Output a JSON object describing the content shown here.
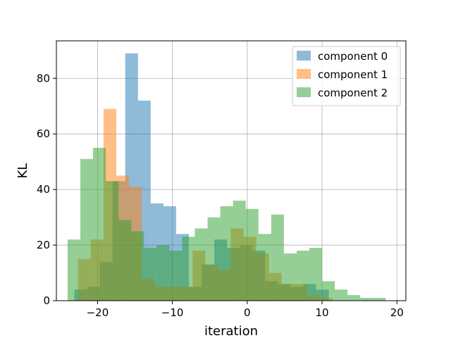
{
  "chart_data": {
    "type": "histogram",
    "xlabel": "iteration",
    "ylabel": "KL",
    "xlim": [
      -25.5,
      21.2
    ],
    "ylim": [
      0,
      93.5
    ],
    "xticks": [
      -20,
      -10,
      0,
      10,
      20
    ],
    "xtick_labels": [
      "−20",
      "−10",
      "0",
      "10",
      "20"
    ],
    "yticks": [
      0,
      20,
      40,
      60,
      80
    ],
    "ytick_labels": [
      "0",
      "20",
      "40",
      "60",
      "80"
    ],
    "grid": true,
    "legend_position": "top-right",
    "alpha": 0.5,
    "series": [
      {
        "name": "component 0",
        "color": "#1f77b4",
        "edges": [
          -23.1,
          -21.4,
          -19.7,
          -18.0,
          -16.3,
          -14.6,
          -12.9,
          -11.2,
          -9.5,
          -7.8,
          -6.1,
          -4.4,
          -2.7,
          -1.0,
          0.7,
          2.4,
          4.1,
          5.8,
          7.5,
          9.2,
          10.9
        ],
        "counts": [
          4,
          5,
          14,
          43,
          89,
          72,
          35,
          34,
          24,
          5,
          13,
          22,
          19,
          20,
          18,
          7,
          6,
          5,
          6,
          4
        ]
      },
      {
        "name": "component 1",
        "color": "#ff7f0e",
        "edges": [
          -22.6,
          -20.9,
          -19.2,
          -17.5,
          -15.8,
          -14.1,
          -12.4,
          -10.7,
          -9.0,
          -7.3,
          -5.6,
          -3.9,
          -2.2,
          -0.5,
          1.2,
          2.9,
          4.6,
          6.3,
          8.0,
          9.7,
          11.4
        ],
        "counts": [
          15,
          22,
          69,
          45,
          41,
          8,
          5,
          5,
          5,
          18,
          13,
          11,
          26,
          23,
          17,
          10,
          6,
          6,
          2,
          1
        ]
      },
      {
        "name": "component 2",
        "color": "#2ca02c",
        "edges": [
          -24.0,
          -22.3,
          -20.6,
          -18.9,
          -17.2,
          -15.5,
          -13.8,
          -12.1,
          -10.4,
          -8.7,
          -7.0,
          -5.3,
          -3.6,
          -1.9,
          -0.2,
          1.5,
          3.2,
          4.9,
          6.6,
          8.3,
          10.0,
          11.7,
          13.4,
          15.1,
          16.8,
          18.5
        ],
        "counts": [
          22,
          51,
          55,
          43,
          29,
          25,
          19,
          20,
          18,
          23,
          26,
          30,
          34,
          36,
          33,
          24,
          31,
          17,
          18,
          19,
          7,
          4,
          2,
          1,
          1
        ]
      }
    ]
  }
}
